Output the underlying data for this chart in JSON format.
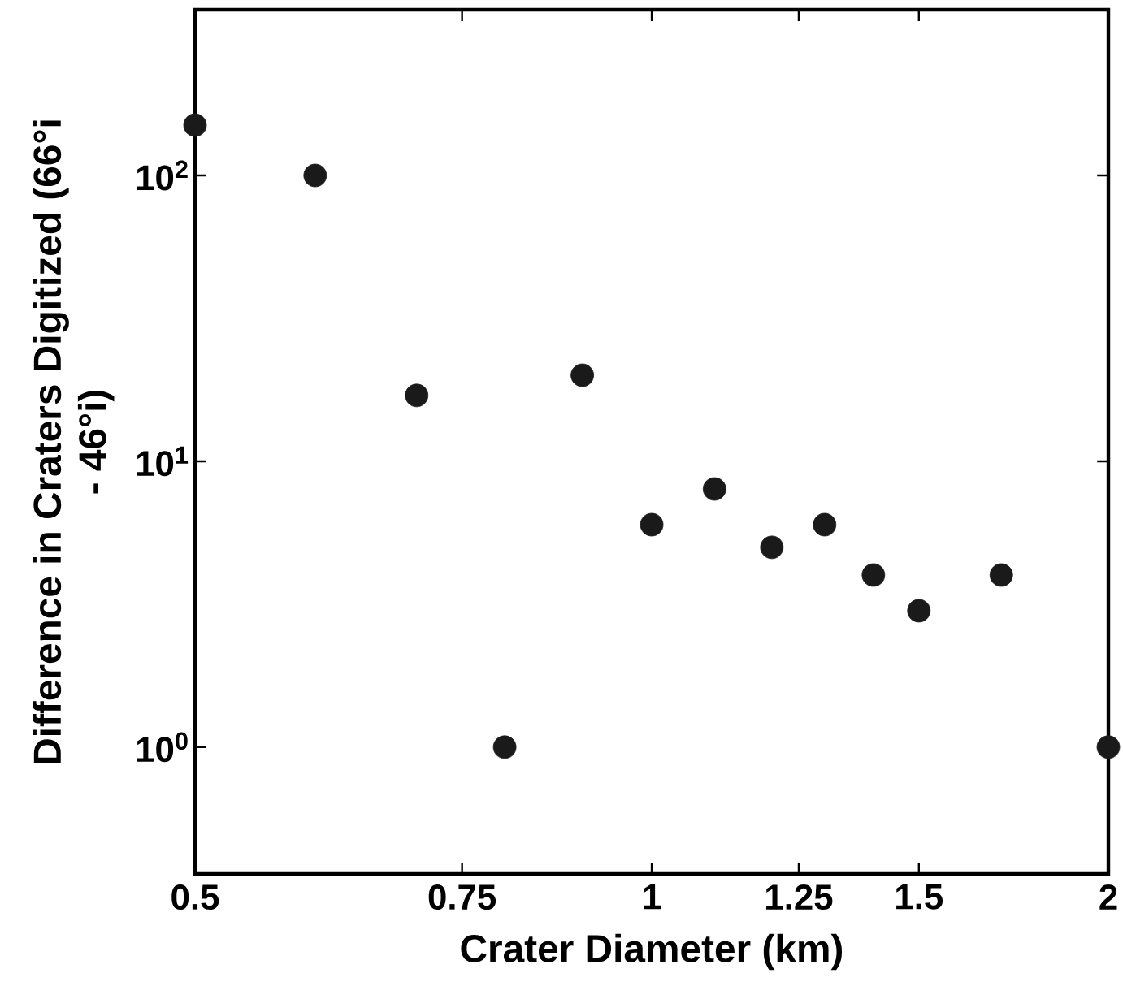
{
  "chart_data": {
    "type": "scatter",
    "xlabel": "Crater Diameter (km)",
    "ylabel": "Difference in Craters Digitized (66°i - 46°i)",
    "log": "xy",
    "grid": false,
    "marker": "circle",
    "xlim": [
      0.5,
      2
    ],
    "xticks": [
      0.5,
      0.75,
      1,
      1.25,
      1.5,
      2
    ],
    "ylim": [
      0.36,
      380
    ],
    "yticks": [
      {
        "value": 1,
        "label": "10$^{0}$"
      },
      {
        "value": 10,
        "label": "10$^{1}$"
      },
      {
        "value": 100,
        "label": "10$^{2}$"
      }
    ],
    "series": [
      {
        "color": "#1a1a1a",
        "x": [
          0.5,
          0.6,
          0.7,
          0.8,
          0.9,
          1.0,
          1.1,
          1.2,
          1.3,
          1.4,
          1.5,
          1.7,
          2.0
        ],
        "values": [
          150,
          100,
          17,
          1,
          20,
          6,
          8,
          5,
          6,
          4,
          3,
          4,
          1
        ]
      }
    ]
  }
}
